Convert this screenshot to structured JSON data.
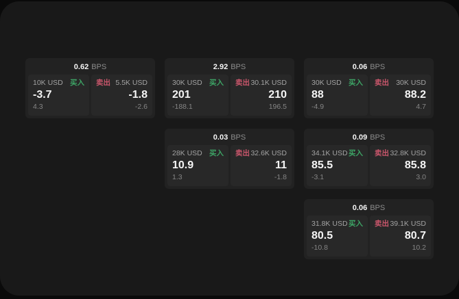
{
  "labels": {
    "bps_unit": "BPS",
    "buy": "买入",
    "sell": "卖出"
  },
  "colors": {
    "page_bg": "#0a0a0a",
    "panel_bg": "#191919",
    "card_bg": "#222222",
    "tile_bg": "#282828",
    "buy_green": "#3da365",
    "sell_red": "#c9566b",
    "text_white": "#f5f5f5",
    "text_gray": "#a3a3a3",
    "text_dim": "#858585"
  },
  "cards": [
    {
      "bps": "0.62",
      "row": 1,
      "col": 1,
      "buy": {
        "amount": "10K USD",
        "price": "-3.7",
        "delta": "4.3"
      },
      "sell": {
        "amount": "5.5K USD",
        "price": "-1.8",
        "delta": "-2.6"
      }
    },
    {
      "bps": "2.92",
      "row": 1,
      "col": 2,
      "buy": {
        "amount": "30K USD",
        "price": "201",
        "delta": "-188.1"
      },
      "sell": {
        "amount": "30.1K USD",
        "price": "210",
        "delta": "196.5"
      }
    },
    {
      "bps": "0.06",
      "row": 1,
      "col": 3,
      "buy": {
        "amount": "30K USD",
        "price": "88",
        "delta": "-4.9"
      },
      "sell": {
        "amount": "30K USD",
        "price": "88.2",
        "delta": "4.7"
      }
    },
    {
      "bps": "0.03",
      "row": 2,
      "col": 2,
      "buy": {
        "amount": "28K USD",
        "price": "10.9",
        "delta": "1.3"
      },
      "sell": {
        "amount": "32.6K USD",
        "price": "11",
        "delta": "-1.8"
      }
    },
    {
      "bps": "0.09",
      "row": 2,
      "col": 3,
      "buy": {
        "amount": "34.1K USD",
        "price": "85.5",
        "delta": "-3.1"
      },
      "sell": {
        "amount": "32.8K USD",
        "price": "85.8",
        "delta": "3.0"
      }
    },
    {
      "bps": "0.06",
      "row": 3,
      "col": 3,
      "buy": {
        "amount": "31.8K USD",
        "price": "80.5",
        "delta": "-10.8"
      },
      "sell": {
        "amount": "39.1K USD",
        "price": "80.7",
        "delta": "10.2"
      }
    }
  ]
}
